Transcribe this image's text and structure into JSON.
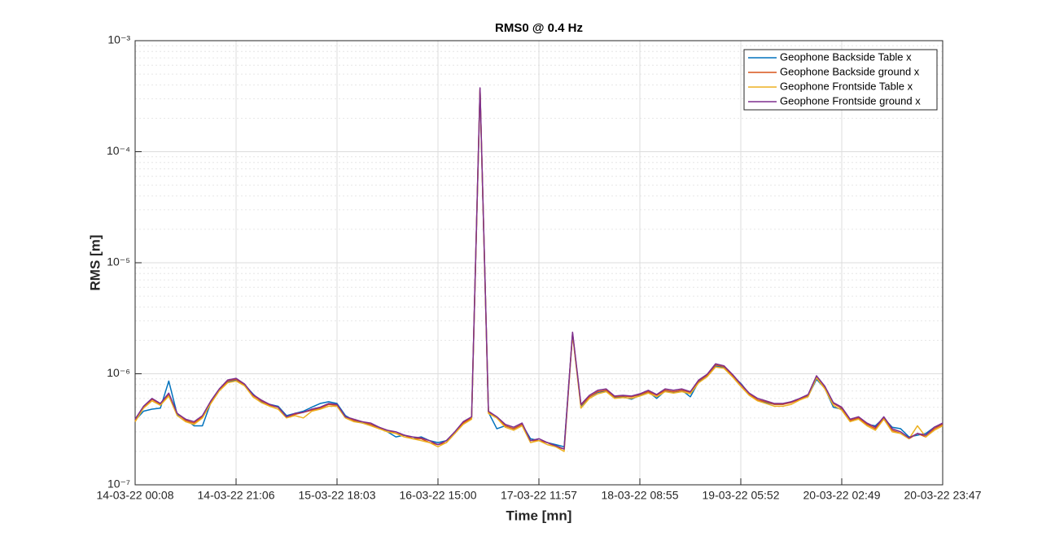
{
  "chart_data": {
    "type": "line",
    "title": "RMS0 @ 0.4 Hz",
    "x_label": "Time [mn]",
    "y_label": "RMS [m]",
    "y_scale": "log",
    "grid": true,
    "minor_grid": true,
    "legend_position": "northeast",
    "ylim": [
      1e-07,
      0.001
    ],
    "yticks": [
      {
        "value": 1e-07,
        "label": "10⁻⁷"
      },
      {
        "value": 1e-06,
        "label": "10⁻⁶"
      },
      {
        "value": 1e-05,
        "label": "10⁻⁵"
      },
      {
        "value": 0.0001,
        "label": "10⁻⁴"
      },
      {
        "value": 0.001,
        "label": "10⁻³"
      }
    ],
    "categories": [
      "14-03-22 00:08",
      null,
      null,
      null,
      null,
      null,
      null,
      null,
      null,
      null,
      null,
      null,
      "14-03-22 21:06",
      null,
      null,
      null,
      null,
      null,
      null,
      null,
      null,
      null,
      null,
      null,
      "15-03-22 18:03",
      null,
      null,
      null,
      null,
      null,
      null,
      null,
      null,
      null,
      null,
      null,
      "16-03-22 15:00",
      null,
      null,
      null,
      null,
      null,
      null,
      null,
      null,
      null,
      null,
      null,
      "17-03-22 11:57",
      null,
      null,
      null,
      null,
      null,
      null,
      null,
      null,
      null,
      null,
      null,
      "18-03-22 08:55",
      null,
      null,
      null,
      null,
      null,
      null,
      null,
      null,
      null,
      null,
      null,
      "19-03-22 05:52",
      null,
      null,
      null,
      null,
      null,
      null,
      null,
      null,
      null,
      null,
      null,
      "20-03-22 02:49",
      null,
      null,
      null,
      null,
      null,
      null,
      null,
      null,
      null,
      null,
      null,
      "20-03-22 23:47"
    ],
    "series": [
      {
        "name": "Geophone Backside Table x",
        "color": "#0072BD",
        "values": [
          3.8e-07,
          4.6e-07,
          4.8e-07,
          4.9e-07,
          8.6e-07,
          4.3e-07,
          3.9e-07,
          3.4e-07,
          3.4e-07,
          5.5e-07,
          7.1e-07,
          8.5e-07,
          8.8e-07,
          8e-07,
          6.6e-07,
          5.6e-07,
          5.3e-07,
          5.1e-07,
          4.2e-07,
          4.4e-07,
          4.6e-07,
          5e-07,
          5.4e-07,
          5.6e-07,
          5.4e-07,
          4.2e-07,
          3.8e-07,
          3.6e-07,
          3.5e-07,
          3.3e-07,
          3e-07,
          2.7e-07,
          2.8e-07,
          2.6e-07,
          2.7e-07,
          2.5e-07,
          2.4e-07,
          2.5e-07,
          2.9e-07,
          3.6e-07,
          4e-07,
          0.00036,
          4.5e-07,
          3.2e-07,
          3.4e-07,
          3.2e-07,
          3.5e-07,
          2.6e-07,
          2.5e-07,
          2.4e-07,
          2.3e-07,
          2.2e-07,
          2.3e-06,
          5.1e-07,
          6.2e-07,
          6.8e-07,
          7e-07,
          6.1e-07,
          6.2e-07,
          5.9e-07,
          6.4e-07,
          6.9e-07,
          6e-07,
          7e-07,
          6.8e-07,
          7.1e-07,
          6.2e-07,
          8.5e-07,
          9.6e-07,
          1.17e-06,
          1.15e-06,
          9.6e-07,
          8.2e-07,
          6.6e-07,
          5.8e-07,
          5.5e-07,
          5.3e-07,
          5.3e-07,
          5.6e-07,
          5.9e-07,
          6.3e-07,
          8.9e-07,
          7.4e-07,
          5e-07,
          4.8e-07,
          3.8e-07,
          4e-07,
          3.5e-07,
          3.4e-07,
          4e-07,
          3.3e-07,
          3.2e-07,
          2.7e-07,
          2.8e-07,
          2.9e-07,
          3.3e-07,
          3.5e-07
        ]
      },
      {
        "name": "Geophone Backside ground x",
        "color": "#D95319",
        "values": [
          3.8e-07,
          5e-07,
          5.9e-07,
          5.3e-07,
          6.5e-07,
          4.4e-07,
          3.8e-07,
          3.6e-07,
          4.1e-07,
          5.6e-07,
          7.2e-07,
          8.6e-07,
          8.9e-07,
          8e-07,
          6.4e-07,
          5.7e-07,
          5.2e-07,
          5e-07,
          4.1e-07,
          4.3e-07,
          4.5e-07,
          4.7e-07,
          4.9e-07,
          5.3e-07,
          5.2e-07,
          4.1e-07,
          3.8e-07,
          3.7e-07,
          3.5e-07,
          3.2e-07,
          3.1e-07,
          2.9e-07,
          2.8e-07,
          2.6e-07,
          2.6e-07,
          2.4e-07,
          2.3e-07,
          2.4e-07,
          2.9e-07,
          3.6e-07,
          4e-07,
          0.00037,
          4.5e-07,
          4e-07,
          3.4e-07,
          3.2e-07,
          3.5e-07,
          2.5e-07,
          2.5e-07,
          2.4e-07,
          2.2e-07,
          2.1e-07,
          2.3e-06,
          5.2e-07,
          6.2e-07,
          6.9e-07,
          7.1e-07,
          6.2e-07,
          6.3e-07,
          6.2e-07,
          6.5e-07,
          6.9e-07,
          6.4e-07,
          7.1e-07,
          6.9e-07,
          7.1e-07,
          6.8e-07,
          8.6e-07,
          9.7e-07,
          1.2e-06,
          1.16e-06,
          9.7e-07,
          8e-07,
          6.6e-07,
          5.8e-07,
          5.6e-07,
          5.3e-07,
          5.3e-07,
          5.5e-07,
          5.9e-07,
          6.4e-07,
          9.4e-07,
          7.5e-07,
          5.4e-07,
          4.9e-07,
          3.8e-07,
          4e-07,
          3.5e-07,
          3.2e-07,
          4e-07,
          3.1e-07,
          2.9e-07,
          2.6e-07,
          2.9e-07,
          2.7e-07,
          3.2e-07,
          3.5e-07
        ]
      },
      {
        "name": "Geophone Frontside Table x",
        "color": "#EDB120",
        "values": [
          3.7e-07,
          4.9e-07,
          5.7e-07,
          5.2e-07,
          6.3e-07,
          4.2e-07,
          3.7e-07,
          3.5e-07,
          4e-07,
          5.4e-07,
          7e-07,
          8.3e-07,
          8.6e-07,
          7.8e-07,
          6.2e-07,
          5.5e-07,
          5.1e-07,
          4.8e-07,
          4e-07,
          4.2e-07,
          4e-07,
          4.6e-07,
          4.8e-07,
          5.1e-07,
          5.1e-07,
          4e-07,
          3.7e-07,
          3.6e-07,
          3.4e-07,
          3.2e-07,
          3e-07,
          2.9e-07,
          2.7e-07,
          2.6e-07,
          2.5e-07,
          2.4e-07,
          2.2e-07,
          2.4e-07,
          2.9e-07,
          3.5e-07,
          3.9e-07,
          0.00036,
          4.4e-07,
          4e-07,
          3.3e-07,
          3.1e-07,
          3.4e-07,
          2.4e-07,
          2.5e-07,
          2.3e-07,
          2.2e-07,
          2e-07,
          2.25e-06,
          4.9e-07,
          6e-07,
          6.6e-07,
          6.9e-07,
          6e-07,
          6.1e-07,
          6e-07,
          6.3e-07,
          6.7e-07,
          6.2e-07,
          6.9e-07,
          6.7e-07,
          6.9e-07,
          6.6e-07,
          8.3e-07,
          9.4e-07,
          1.15e-06,
          1.12e-06,
          9.4e-07,
          7.7e-07,
          6.4e-07,
          5.7e-07,
          5.4e-07,
          5.1e-07,
          5.1e-07,
          5.3e-07,
          5.8e-07,
          6.2e-07,
          9.2e-07,
          7.3e-07,
          5.2e-07,
          4.7e-07,
          3.7e-07,
          3.9e-07,
          3.4e-07,
          3.1e-07,
          3.9e-07,
          3e-07,
          2.9e-07,
          2.6e-07,
          3.4e-07,
          2.7e-07,
          3.1e-07,
          3.4e-07
        ]
      },
      {
        "name": "Geophone Frontside ground x",
        "color": "#7E2F8E",
        "values": [
          3.9e-07,
          5.1e-07,
          6e-07,
          5.4e-07,
          6.7e-07,
          4.4e-07,
          3.9e-07,
          3.7e-07,
          4.2e-07,
          5.7e-07,
          7.3e-07,
          8.8e-07,
          9.1e-07,
          8.1e-07,
          6.5e-07,
          5.8e-07,
          5.3e-07,
          5e-07,
          4.1e-07,
          4.4e-07,
          4.5e-07,
          4.8e-07,
          5e-07,
          5.4e-07,
          5.3e-07,
          4.1e-07,
          3.9e-07,
          3.7e-07,
          3.6e-07,
          3.3e-07,
          3.1e-07,
          3e-07,
          2.8e-07,
          2.7e-07,
          2.65e-07,
          2.5e-07,
          2.3e-07,
          2.5e-07,
          3e-07,
          3.7e-07,
          4.1e-07,
          0.000376,
          4.6e-07,
          4.1e-07,
          3.5e-07,
          3.3e-07,
          3.6e-07,
          2.5e-07,
          2.6e-07,
          2.4e-07,
          2.25e-07,
          2.1e-07,
          2.37e-06,
          5.3e-07,
          6.4e-07,
          7.1e-07,
          7.3e-07,
          6.3e-07,
          6.4e-07,
          6.3e-07,
          6.6e-07,
          7.1e-07,
          6.5e-07,
          7.3e-07,
          7.1e-07,
          7.3e-07,
          6.9e-07,
          8.8e-07,
          9.9e-07,
          1.23e-06,
          1.18e-06,
          9.9e-07,
          8.1e-07,
          6.7e-07,
          6e-07,
          5.7e-07,
          5.4e-07,
          5.4e-07,
          5.6e-07,
          6e-07,
          6.5e-07,
          9.6e-07,
          7.7e-07,
          5.5e-07,
          5e-07,
          3.9e-07,
          4.1e-07,
          3.6e-07,
          3.3e-07,
          4.1e-07,
          3.2e-07,
          3e-07,
          2.65e-07,
          2.9e-07,
          2.8e-07,
          3.3e-07,
          3.6e-07
        ]
      }
    ]
  }
}
